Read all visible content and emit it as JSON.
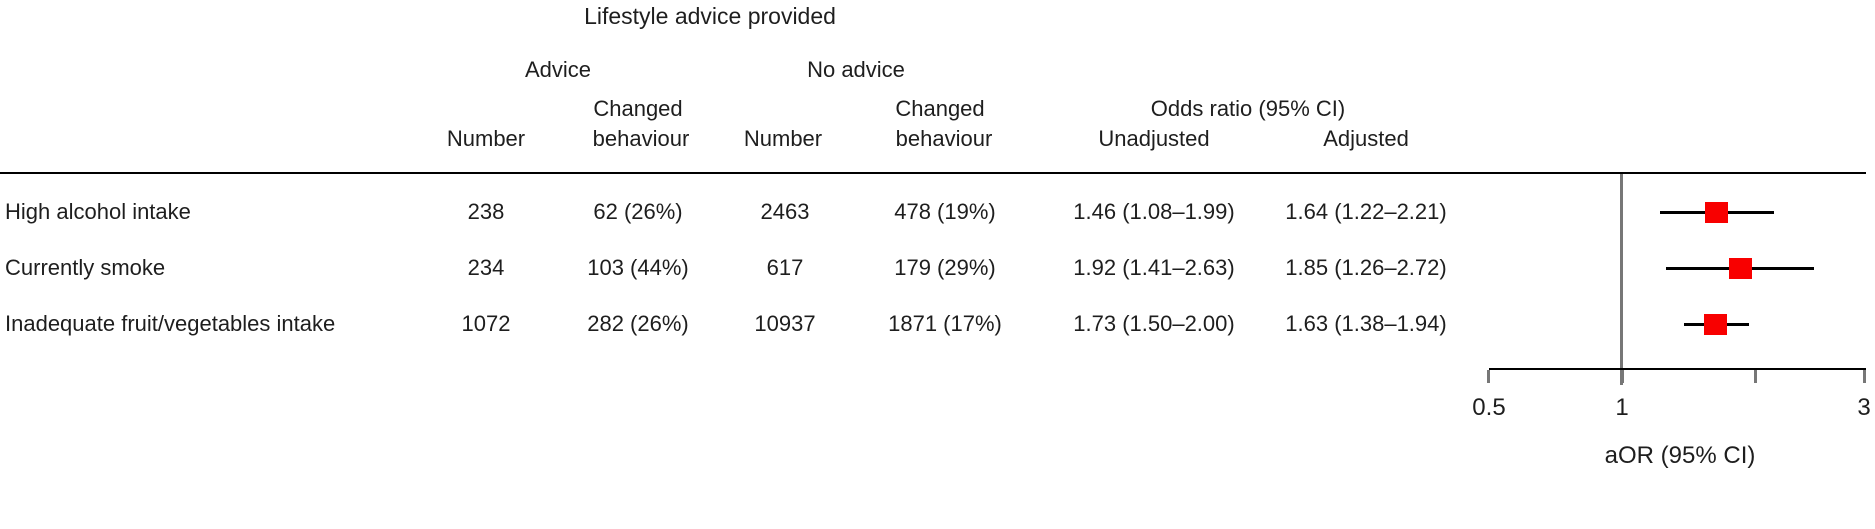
{
  "header": {
    "title": "Lifestyle advice provided",
    "advice_group": "Advice",
    "no_advice_group": "No advice",
    "or_group": "Odds ratio (95% CI)",
    "col_number_1": "Number",
    "col_changed_top_1": "Changed",
    "col_changed_bottom_1": "behaviour",
    "col_number_2": "Number",
    "col_changed_top_2": "Changed",
    "col_changed_bottom_2": "behaviour",
    "col_unadjusted": "Unadjusted",
    "col_adjusted": "Adjusted"
  },
  "table": {
    "rows": [
      {
        "label": "High alcohol intake",
        "advice_number": "238",
        "advice_changed": "62 (26%)",
        "no_advice_number": "2463",
        "no_advice_changed": "478 (19%)",
        "or_unadjusted": "1.46 (1.08–1.99)",
        "or_adjusted": "1.64 (1.22–2.21)"
      },
      {
        "label": "Currently smoke",
        "advice_number": "234",
        "advice_changed": "103 (44%)",
        "no_advice_number": "617",
        "no_advice_changed": "179 (29%)",
        "or_unadjusted": "1.92 (1.41–2.63)",
        "or_adjusted": "1.85 (1.26–2.72)"
      },
      {
        "label": "Inadequate fruit/vegetables intake",
        "advice_number": "1072",
        "advice_changed": "282 (26%)",
        "no_advice_number": "10937",
        "no_advice_changed": "1871 (17%)",
        "or_unadjusted": "1.73 (1.50–2.00)",
        "or_adjusted": "1.63 (1.38–1.94)"
      }
    ]
  },
  "chart_data": {
    "type": "scatter",
    "subtype": "forest-plot",
    "title": "Lifestyle advice provided",
    "xlabel": "aOR (95% CI)",
    "xscale": "log",
    "xlim": [
      0.5,
      3
    ],
    "reference_line": 1,
    "grid": false,
    "marker_color": "#f80000",
    "ci_color": "#000000",
    "reference_line_color": "#777777",
    "xticks": [
      {
        "value": 0.5,
        "label": "0.5"
      },
      {
        "value": 1,
        "label": "1"
      },
      {
        "value": 2,
        "label": ""
      },
      {
        "value": 3,
        "label": "3"
      }
    ],
    "points": [
      {
        "label": "High alcohol intake",
        "aor": 1.64,
        "ci_low": 1.22,
        "ci_high": 2.21
      },
      {
        "label": "Currently smoke",
        "aor": 1.85,
        "ci_low": 1.26,
        "ci_high": 2.72
      },
      {
        "label": "Inadequate fruit/vegetables intake",
        "aor": 1.63,
        "ci_low": 1.38,
        "ci_high": 1.94
      }
    ]
  }
}
